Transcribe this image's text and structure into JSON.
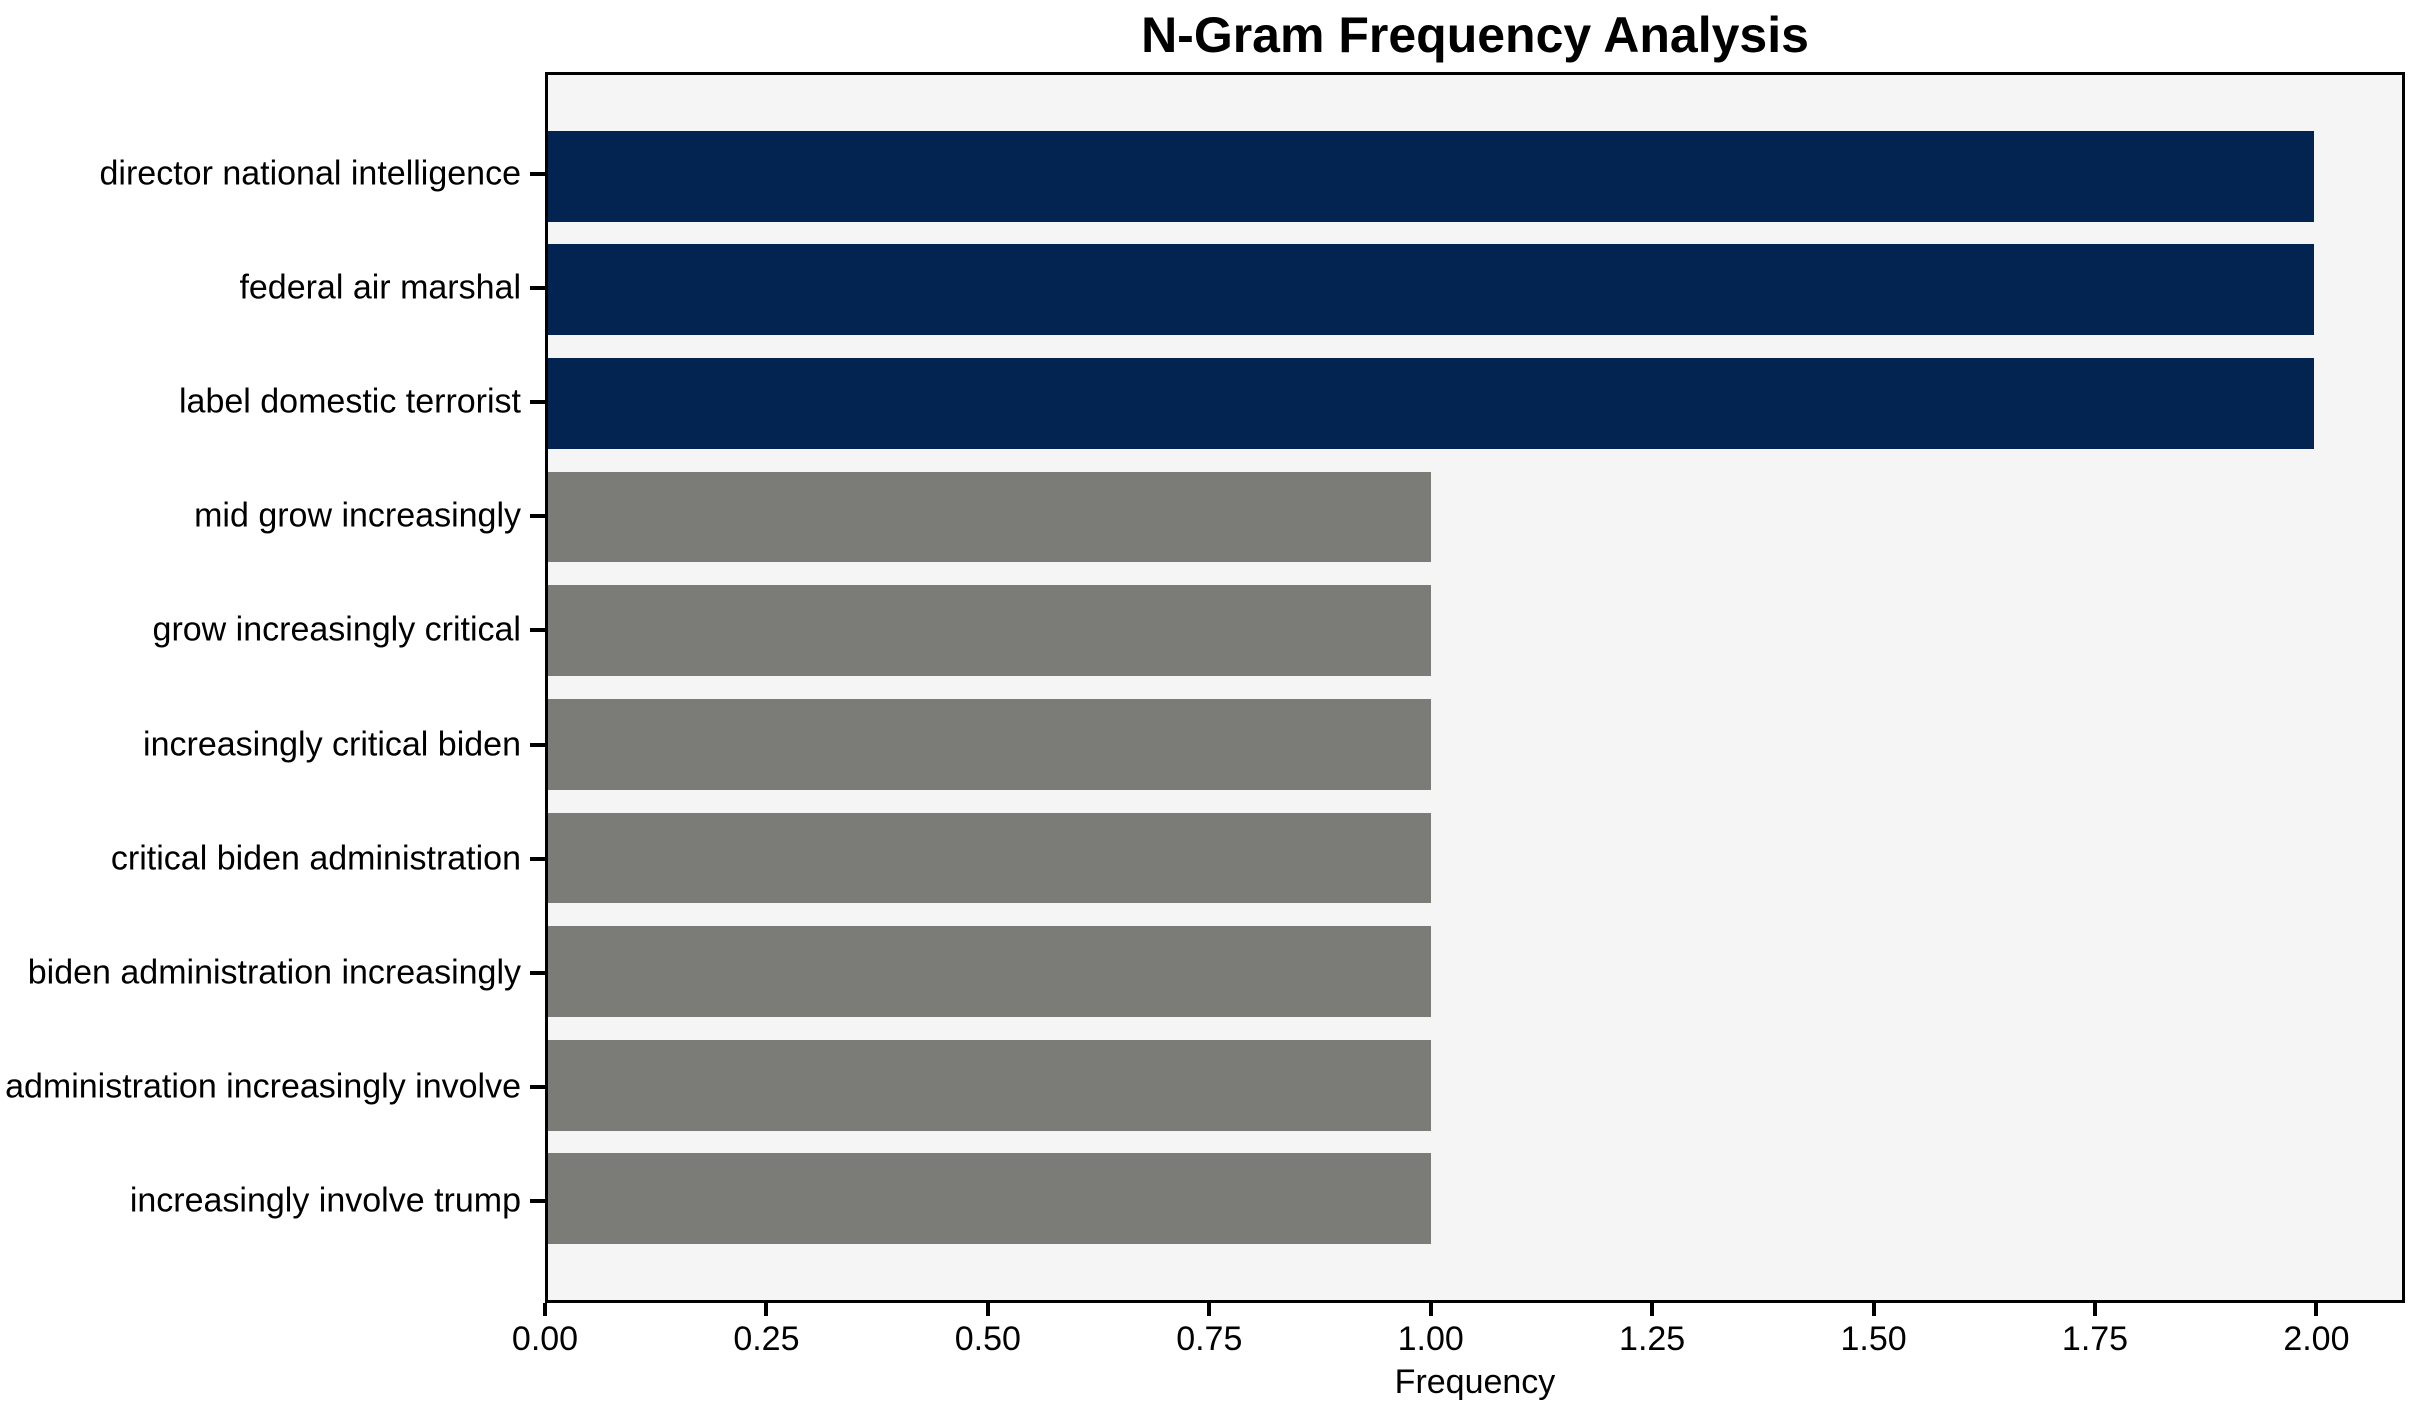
{
  "title": "N-Gram Frequency Analysis",
  "chart_data": {
    "type": "bar",
    "orientation": "horizontal",
    "title": "N-Gram Frequency Analysis",
    "xlabel": "Frequency",
    "ylabel": "",
    "categories": [
      "director national intelligence",
      "federal air marshal",
      "label domestic terrorist",
      "mid grow increasingly",
      "grow increasingly critical",
      "increasingly critical biden",
      "critical biden administration",
      "biden administration increasingly",
      "administration increasingly involve",
      "increasingly involve trump"
    ],
    "values": [
      2,
      2,
      2,
      1,
      1,
      1,
      1,
      1,
      1,
      1
    ],
    "bar_colors": [
      "#032351",
      "#032351",
      "#032351",
      "#7b7b78",
      "#7b7b78",
      "#7b7b78",
      "#7b7b78",
      "#7b7b78",
      "#7b7b78",
      "#7b7b78"
    ],
    "xlim": [
      0,
      2.1
    ],
    "xticks": [
      "0.00",
      "0.25",
      "0.50",
      "0.75",
      "1.00",
      "1.25",
      "1.50",
      "1.75",
      "2.00"
    ],
    "bar_height_fraction": 0.8,
    "grid": false,
    "legend": null,
    "colors": {
      "highlight_bar": "#032351",
      "default_bar": "#7b7b78",
      "plot_background": "#f5f5f5",
      "figure_background": "#ffffff",
      "axis": "#000000",
      "text": "#000000"
    }
  }
}
